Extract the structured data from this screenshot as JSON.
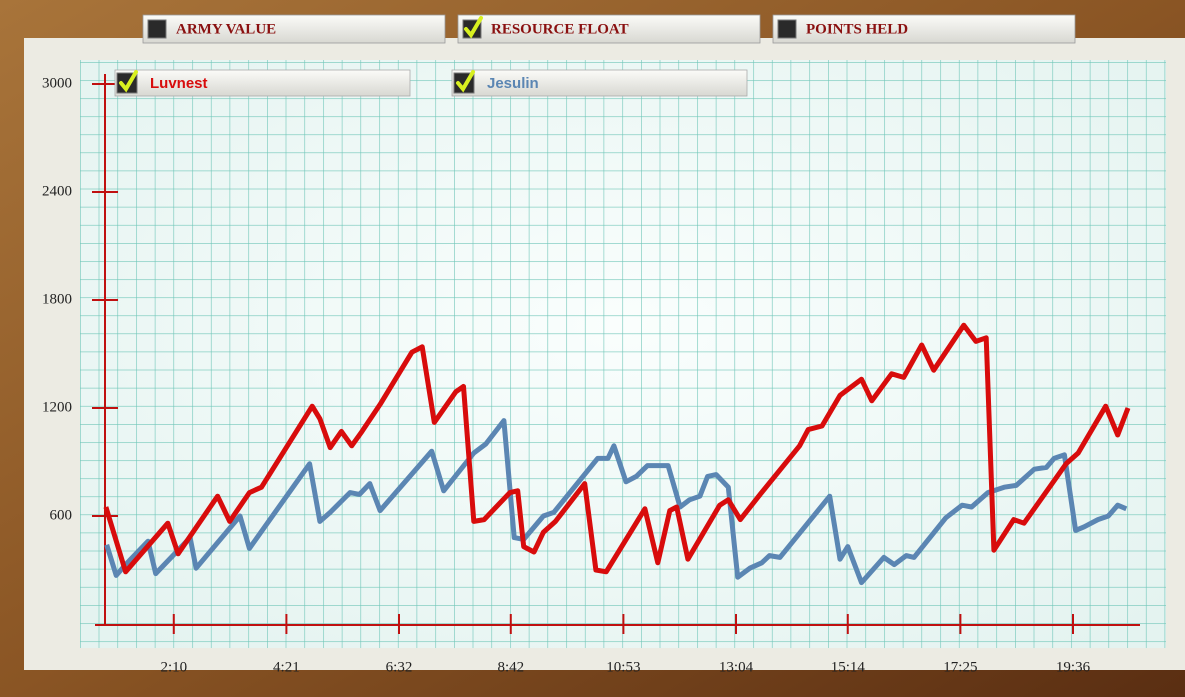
{
  "tabs": [
    {
      "label": "ARMY VALUE",
      "checked": false
    },
    {
      "label": "RESOURCE FLOAT",
      "checked": true
    },
    {
      "label": "POINTS HELD",
      "checked": false
    }
  ],
  "chart_data": {
    "type": "line",
    "xlim": [
      50,
      1283
    ],
    "ylim": [
      0,
      3000
    ],
    "xticks": [
      {
        "value": 130,
        "label": "2:10"
      },
      {
        "value": 261,
        "label": "4:21"
      },
      {
        "value": 392,
        "label": "6:32"
      },
      {
        "value": 522,
        "label": "8:42"
      },
      {
        "value": 653,
        "label": "10:53"
      },
      {
        "value": 784,
        "label": "13:04"
      },
      {
        "value": 914,
        "label": "15:14"
      },
      {
        "value": 1045,
        "label": "17:25"
      },
      {
        "value": 1176,
        "label": "19:36"
      }
    ],
    "yticks": [
      600,
      1200,
      1800,
      2400,
      3000
    ],
    "series": [
      {
        "name": "Luvnest",
        "color": "#d80c0c",
        "x": [
          51,
          74,
          123,
          135,
          181,
          195,
          218,
          232,
          291,
          300,
          312,
          325,
          337,
          349,
          370,
          407,
          419,
          433,
          458,
          467,
          479,
          491,
          521,
          530,
          537,
          549,
          560,
          574,
          608,
          621,
          633,
          678,
          693,
          707,
          715,
          728,
          765,
          775,
          789,
          812,
          858,
          868,
          884,
          905,
          930,
          942,
          965,
          979,
          1000,
          1014,
          1049,
          1063,
          1075,
          1084,
          1107,
          1119,
          1168,
          1182,
          1214,
          1228,
          1240
        ],
        "values": [
          650,
          290,
          560,
          390,
          710,
          570,
          730,
          760,
          1210,
          1140,
          980,
          1070,
          990,
          1070,
          1220,
          1510,
          1540,
          1120,
          1290,
          1320,
          570,
          580,
          730,
          740,
          430,
          400,
          510,
          570,
          780,
          300,
          290,
          640,
          340,
          630,
          650,
          360,
          660,
          690,
          580,
          720,
          990,
          1080,
          1100,
          1270,
          1360,
          1240,
          1390,
          1370,
          1550,
          1410,
          1660,
          1570,
          1590,
          410,
          580,
          560,
          890,
          950,
          1210,
          1050,
          1200
        ]
      },
      {
        "name": "Jesulin",
        "color": "#5b86b3",
        "x": [
          52,
          63,
          74,
          100,
          109,
          149,
          156,
          207,
          218,
          288,
          300,
          312,
          335,
          346,
          358,
          370,
          430,
          444,
          479,
          493,
          514,
          526,
          537,
          560,
          572,
          623,
          635,
          642,
          656,
          668,
          681,
          705,
          719,
          730,
          742,
          751,
          761,
          775,
          786,
          800,
          814,
          823,
          835,
          893,
          905,
          914,
          930,
          956,
          968,
          982,
          991,
          1028,
          1047,
          1058,
          1077,
          1096,
          1110,
          1131,
          1145,
          1154,
          1166,
          1179,
          1189,
          1205,
          1217,
          1228,
          1238
        ],
        "values": [
          440,
          270,
          330,
          460,
          280,
          480,
          310,
          600,
          420,
          890,
          570,
          620,
          730,
          720,
          780,
          630,
          960,
          740,
          950,
          1000,
          1130,
          480,
          470,
          600,
          620,
          920,
          920,
          990,
          790,
          820,
          880,
          880,
          650,
          690,
          710,
          820,
          830,
          760,
          260,
          310,
          340,
          380,
          370,
          710,
          360,
          430,
          230,
          370,
          330,
          380,
          370,
          590,
          660,
          650,
          730,
          760,
          770,
          860,
          870,
          920,
          940,
          520,
          540,
          580,
          600,
          660,
          640
        ]
      }
    ]
  }
}
